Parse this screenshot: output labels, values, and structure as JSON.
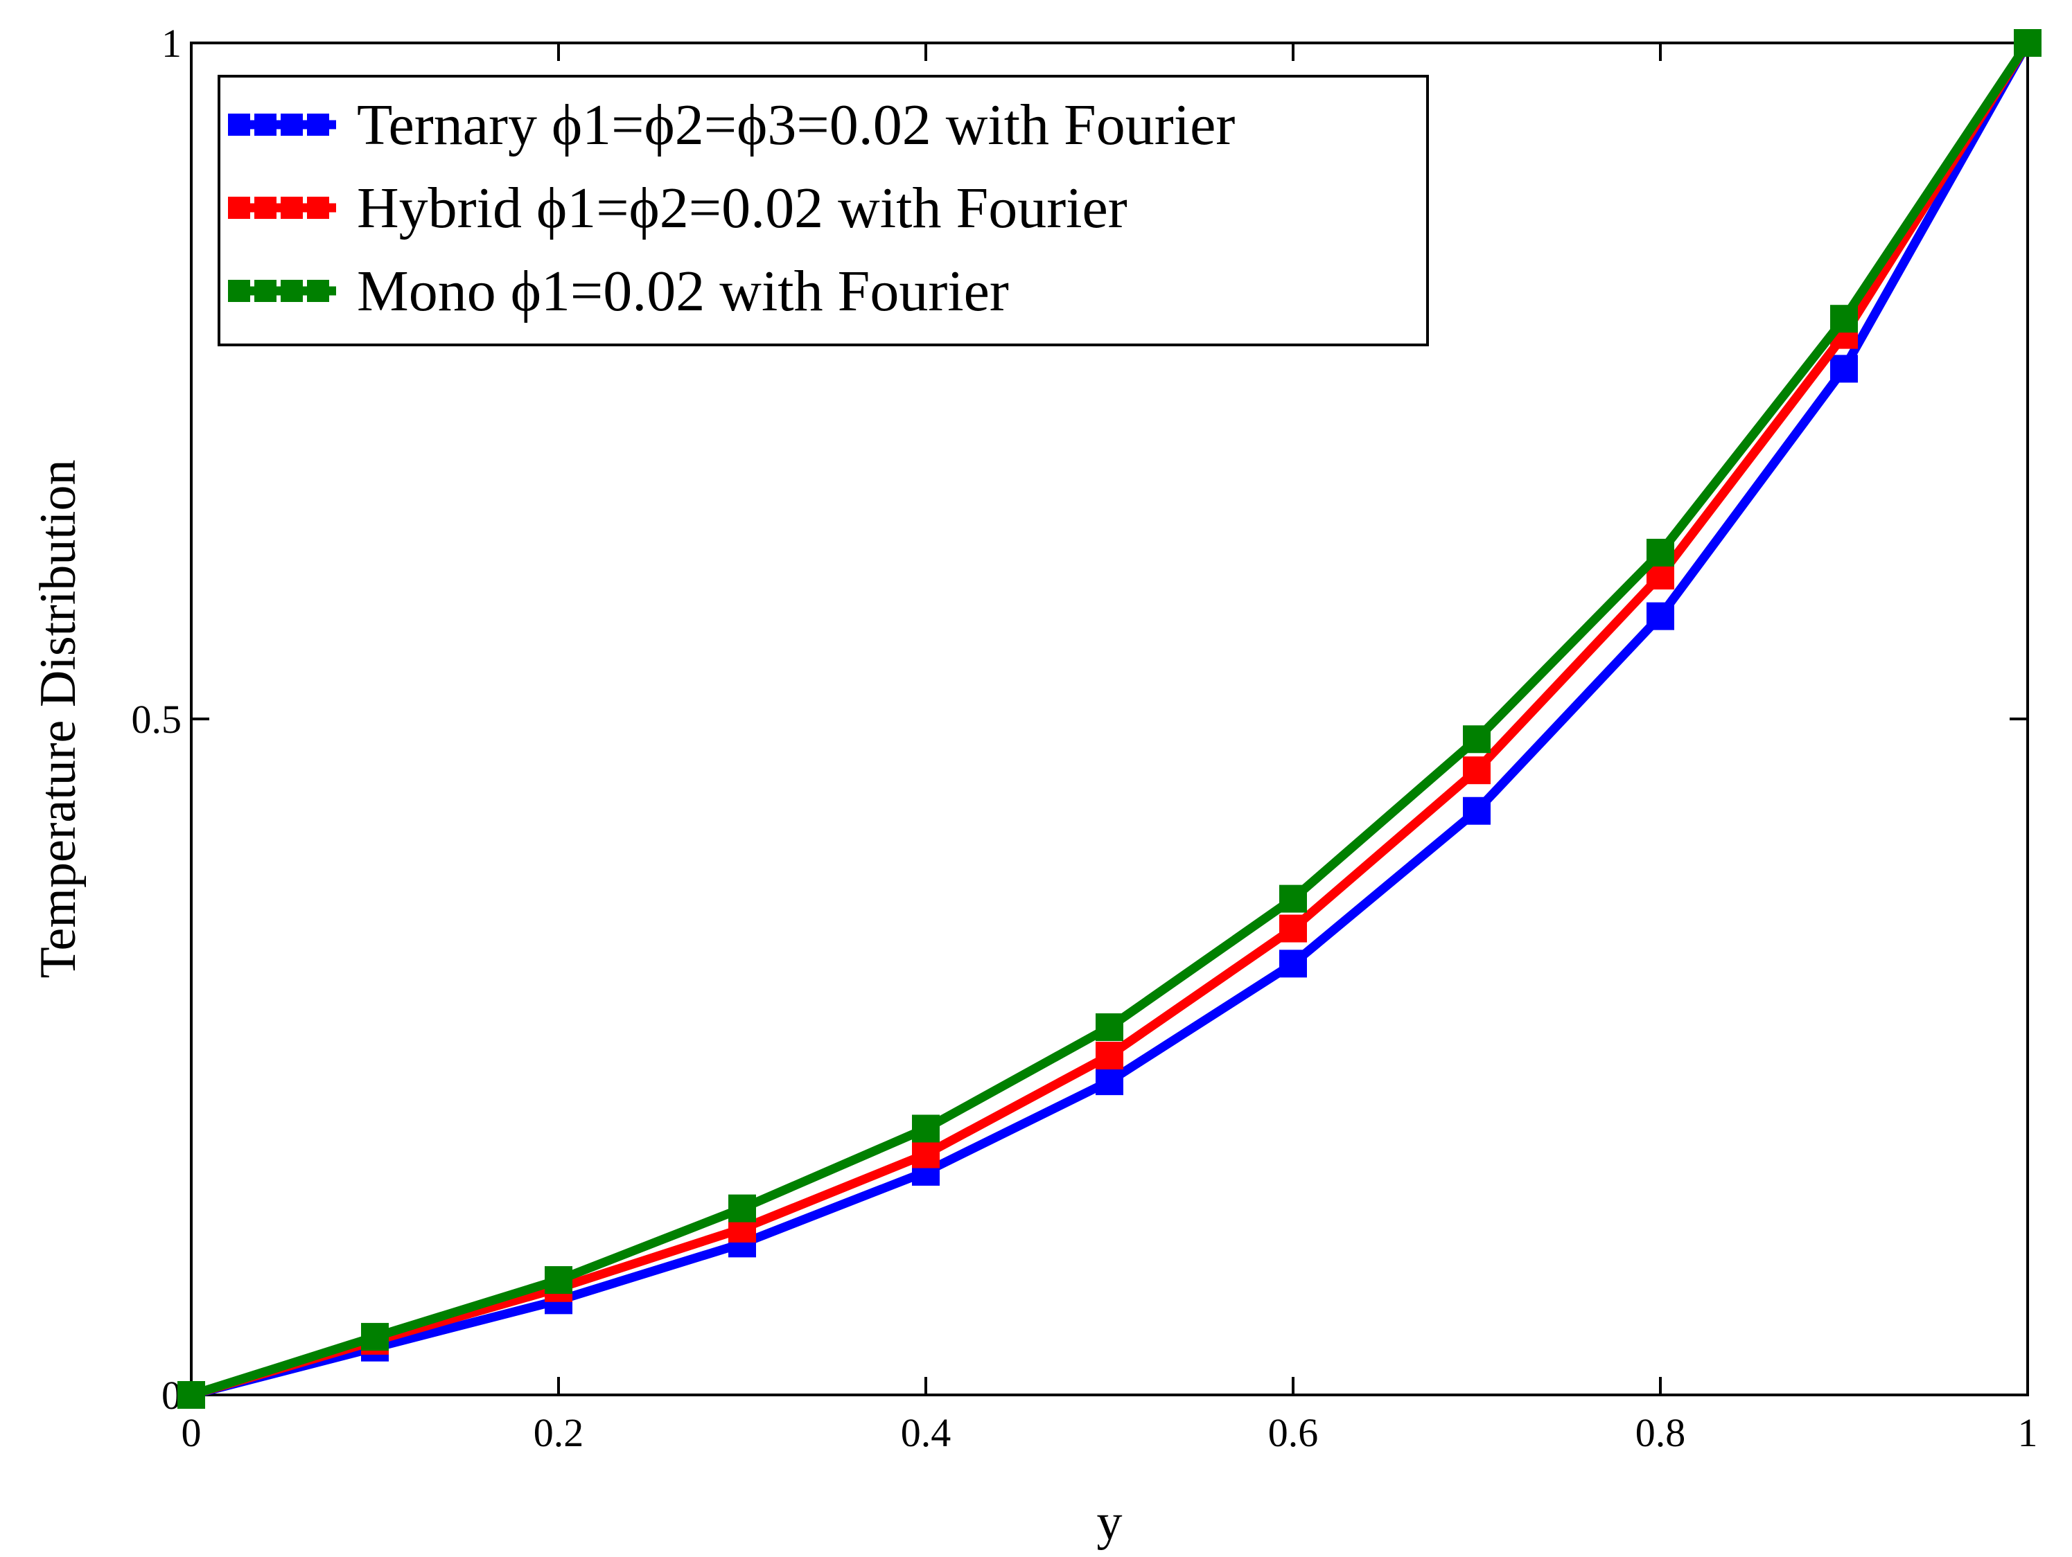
{
  "chart_data": {
    "type": "line",
    "title": "",
    "xlabel": "y",
    "ylabel": "Temperature  Distribution",
    "xlim": [
      0,
      1
    ],
    "ylim": [
      0,
      1
    ],
    "grid": false,
    "legend_position": "top-left",
    "x_ticks": [
      {
        "value": 0,
        "label": "0"
      },
      {
        "value": 0.2,
        "label": "0.2"
      },
      {
        "value": 0.4,
        "label": "0.4"
      },
      {
        "value": 0.6,
        "label": "0.6"
      },
      {
        "value": 0.8,
        "label": "0.8"
      },
      {
        "value": 1,
        "label": "1"
      }
    ],
    "y_ticks": [
      {
        "value": 0,
        "label": "0"
      },
      {
        "value": 0.5,
        "label": "0.5"
      },
      {
        "value": 1,
        "label": "1"
      }
    ],
    "x": [
      0,
      0.1,
      0.2,
      0.3,
      0.4,
      0.5,
      0.6,
      0.7,
      0.8,
      0.9,
      1.0
    ],
    "series": [
      {
        "name": "Ternary ϕ1=ϕ2=ϕ3=0.02 with Fourier",
        "color": "#0000ff",
        "values": [
          0,
          0.035,
          0.07,
          0.112,
          0.165,
          0.232,
          0.319,
          0.432,
          0.576,
          0.759,
          1.0
        ]
      },
      {
        "name": "Hybrid  ϕ1=ϕ2=0.02 with Fourier",
        "color": "#ff0000",
        "values": [
          0,
          0.04,
          0.079,
          0.123,
          0.178,
          0.251,
          0.345,
          0.462,
          0.606,
          0.784,
          1.0
        ]
      },
      {
        "name": "Mono   ϕ1=0.02 with Fourier",
        "color": "#008000",
        "values": [
          0,
          0.043,
          0.085,
          0.138,
          0.197,
          0.272,
          0.367,
          0.485,
          0.623,
          0.796,
          1.0
        ]
      }
    ]
  }
}
